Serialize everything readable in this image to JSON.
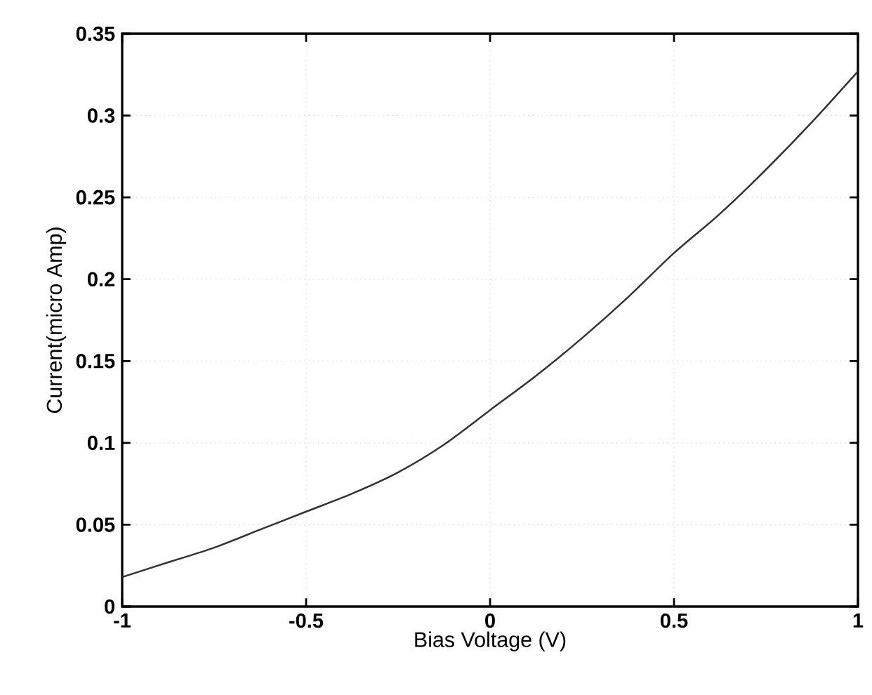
{
  "chart_data": {
    "type": "line",
    "xlabel": "Bias Voltage (V)",
    "ylabel": "Current(micro Amp)",
    "x": [
      -1,
      -0.875,
      -0.75,
      -0.625,
      -0.5,
      -0.375,
      -0.25,
      -0.125,
      0,
      0.125,
      0.25,
      0.375,
      0.5,
      0.625,
      0.75,
      0.875,
      1
    ],
    "series": [
      {
        "color": "#333333",
        "values": [
          0.018,
          0.027,
          0.036,
          0.047,
          0.058,
          0.069,
          0.082,
          0.099,
          0.12,
          0.141,
          0.164,
          0.189,
          0.216,
          0.24,
          0.267,
          0.296,
          0.327
        ]
      }
    ],
    "xlim": [
      -1,
      1
    ],
    "ylim": [
      0,
      0.35
    ],
    "xticks": [
      -1,
      -0.5,
      0,
      0.5,
      1
    ],
    "yticks": [
      0,
      0.05,
      0.1,
      0.15,
      0.2,
      0.25,
      0.3,
      0.35
    ],
    "grid": true,
    "marker": "none",
    "line_style": "solid"
  }
}
